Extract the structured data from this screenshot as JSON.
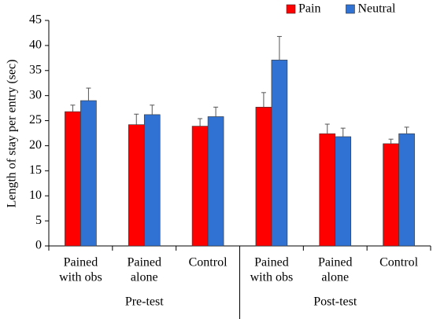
{
  "chart_data": {
    "type": "bar",
    "y_label": "Length of stay per entry (sec)",
    "categories": [
      [
        "Pained",
        "with obs"
      ],
      [
        "Pained",
        "alone"
      ],
      [
        "Control"
      ],
      [
        "Pained",
        "with obs"
      ],
      [
        "Pained",
        "alone"
      ],
      [
        "Control"
      ]
    ],
    "groups": [
      "Pre-test",
      "Post-test"
    ],
    "series": [
      {
        "name": "Pain",
        "color": "#ff0000",
        "values": [
          26.8,
          24.2,
          23.9,
          27.7,
          22.4,
          20.4
        ],
        "errors": [
          1.3,
          2.1,
          1.5,
          2.9,
          1.9,
          0.9
        ]
      },
      {
        "name": "Neutral",
        "color": "#2f72d4",
        "values": [
          29.0,
          26.2,
          25.8,
          37.1,
          21.8,
          22.4
        ],
        "errors": [
          2.5,
          1.9,
          1.9,
          4.7,
          1.7,
          1.3
        ]
      }
    ],
    "ylim": [
      0,
      45
    ],
    "yticks": [
      0,
      5,
      10,
      15,
      20,
      25,
      30,
      35,
      40,
      45
    ],
    "legend": "top-right"
  }
}
